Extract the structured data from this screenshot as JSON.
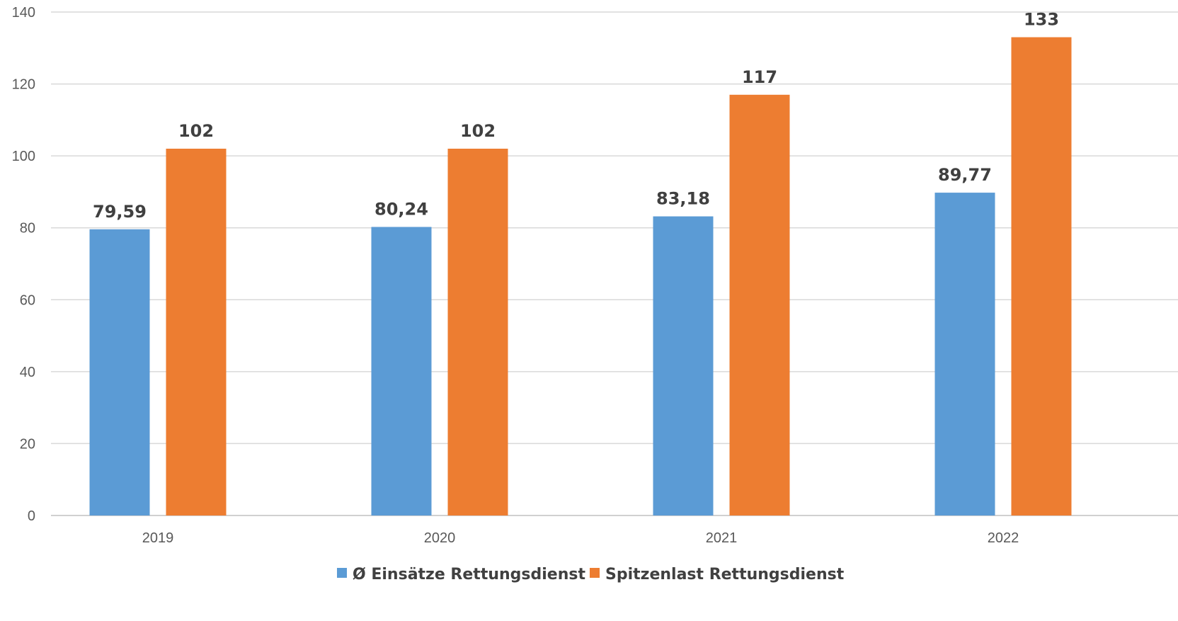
{
  "chart_data": {
    "type": "bar",
    "categories": [
      "2019",
      "2020",
      "2021",
      "2022"
    ],
    "series": [
      {
        "name": "Ø Einsätze Rettungsdienst",
        "values": [
          79.59,
          80.24,
          83.18,
          89.77
        ],
        "labels": [
          "79,59",
          "80,24",
          "83,18",
          "89,77"
        ],
        "color": "#5B9BD5"
      },
      {
        "name": "Spitzenlast Rettungsdienst",
        "values": [
          102,
          102,
          117,
          133
        ],
        "labels": [
          "102",
          "102",
          "117",
          "133"
        ],
        "color": "#ED7D31"
      }
    ],
    "title": "",
    "xlabel": "",
    "ylabel": "",
    "ylim": [
      0,
      140
    ],
    "yticks": [
      0,
      20,
      40,
      60,
      80,
      100,
      120,
      140
    ],
    "grid": true,
    "legend": "bottom"
  }
}
